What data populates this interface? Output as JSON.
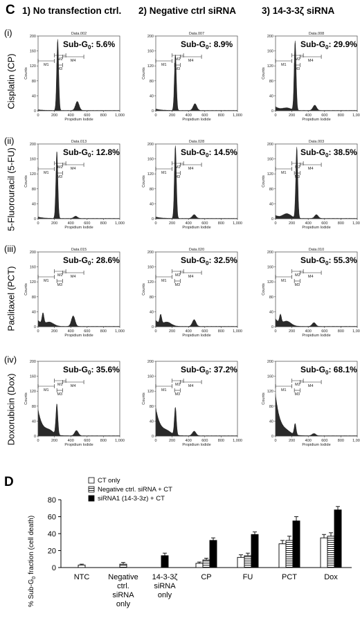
{
  "panel_c": {
    "letter": "C",
    "columns": [
      "1) No transfection ctrl.",
      "2) Negative ctrl siRNA",
      "3) 14-3-3ζ siRNA"
    ],
    "rows": [
      {
        "roman": "(i)",
        "label": "Cisplatin (CP)"
      },
      {
        "roman": "(ii)",
        "label": "5-Fluorouracil (5-FU)"
      },
      {
        "roman": "(iii)",
        "label": "Paclitaxel (PCT)"
      },
      {
        "roman": "(iv)",
        "label": "Doxorubicin (Dox)"
      }
    ],
    "sub_g0_label": "Sub-G",
    "sub_g0_subscript": "0",
    "x_axis_label": "Propidium Iodide",
    "y_axis_label": "Counts",
    "gate_labels": [
      "M1",
      "M2",
      "M3",
      "M4"
    ]
  },
  "chart_data": [
    {
      "type": "histogram-grid",
      "x_ticks": [
        "0",
        "200",
        "400",
        "600",
        "800",
        "1,000"
      ],
      "xlim": [
        0,
        1000
      ],
      "xlabel": "Propidium Iodide",
      "ylabel": "Counts",
      "histograms": [
        {
          "row": 0,
          "col": 0,
          "data_title": "Data.002",
          "sub_g0_value": "5.6%",
          "ylim": [
            0,
            200
          ],
          "y_ticks": [
            "0",
            "40",
            "80",
            "120",
            "160",
            "200"
          ],
          "g1_x": 240,
          "g1_peak": 190,
          "g2_x": 480,
          "g2_peak": 24,
          "debris": 2,
          "sub_hump": 0
        },
        {
          "row": 0,
          "col": 1,
          "data_title": "Data.007",
          "sub_g0_value": "8.9%",
          "ylim": [
            0,
            200
          ],
          "y_ticks": [
            "0",
            "40",
            "80",
            "120",
            "160",
            "200"
          ],
          "g1_x": 240,
          "g1_peak": 150,
          "g2_x": 480,
          "g2_peak": 18,
          "debris": 4,
          "sub_hump": 0
        },
        {
          "row": 0,
          "col": 2,
          "data_title": "Data.008",
          "sub_g0_value": "29.9%",
          "ylim": [
            0,
            200
          ],
          "y_ticks": [
            "0",
            "40",
            "80",
            "120",
            "160",
            "200"
          ],
          "g1_x": 240,
          "g1_peak": 185,
          "g2_x": 480,
          "g2_peak": 14,
          "debris": 10,
          "sub_hump": 6
        },
        {
          "row": 1,
          "col": 0,
          "data_title": "Data.013",
          "sub_g0_value": "12.8%",
          "ylim": [
            0,
            200
          ],
          "y_ticks": [
            "0",
            "40",
            "80",
            "120",
            "160",
            "200"
          ],
          "g1_x": 230,
          "g1_peak": 180,
          "g2_x": 460,
          "g2_peak": 6,
          "debris": 4,
          "sub_hump": 0
        },
        {
          "row": 1,
          "col": 1,
          "data_title": "Data.028",
          "sub_g0_value": "14.5%",
          "ylim": [
            0,
            200
          ],
          "y_ticks": [
            "0",
            "40",
            "80",
            "120",
            "160",
            "200"
          ],
          "g1_x": 240,
          "g1_peak": 195,
          "g2_x": 470,
          "g2_peak": 10,
          "debris": 4,
          "sub_hump": 0
        },
        {
          "row": 1,
          "col": 2,
          "data_title": "Data.003",
          "sub_g0_value": "38.5%",
          "ylim": [
            0,
            200
          ],
          "y_ticks": [
            "0",
            "40",
            "80",
            "120",
            "160",
            "200"
          ],
          "g1_x": 260,
          "g1_peak": 190,
          "g2_x": 500,
          "g2_peak": 10,
          "debris": 8,
          "sub_hump": 12
        },
        {
          "row": 2,
          "col": 0,
          "data_title": "Data.015",
          "sub_g0_value": "28.6%",
          "ylim": [
            0,
            200
          ],
          "y_ticks": [
            "0",
            "40",
            "80",
            "120",
            "160",
            "200"
          ],
          "g1_x": 60,
          "g1_peak": 28,
          "g2_x": 430,
          "g2_peak": 28,
          "debris": 16,
          "sub_hump": 10
        },
        {
          "row": 2,
          "col": 1,
          "data_title": "Data.020",
          "sub_g0_value": "32.5%",
          "ylim": [
            0,
            200
          ],
          "y_ticks": [
            "0",
            "40",
            "80",
            "120",
            "160",
            "200"
          ],
          "g1_x": 60,
          "g1_peak": 24,
          "g2_x": 470,
          "g2_peak": 18,
          "debris": 16,
          "sub_hump": 10
        },
        {
          "row": 2,
          "col": 2,
          "data_title": "Data.010",
          "sub_g0_value": "55.3%",
          "ylim": [
            0,
            200
          ],
          "y_ticks": [
            "0",
            "40",
            "80",
            "120",
            "160",
            "200"
          ],
          "g1_x": 60,
          "g1_peak": 22,
          "g2_x": 470,
          "g2_peak": 10,
          "debris": 20,
          "sub_hump": 12
        },
        {
          "row": 3,
          "col": 0,
          "data_title": "",
          "sub_g0_value": "35.6%",
          "ylim": [
            0,
            200
          ],
          "y_ticks": [
            "0",
            "40",
            "80",
            "120",
            "160",
            "200"
          ],
          "g1_x": 230,
          "g1_peak": 82,
          "g2_x": 470,
          "g2_peak": 14,
          "debris": 70,
          "sub_hump": 10
        },
        {
          "row": 3,
          "col": 1,
          "data_title": "",
          "sub_g0_value": "37.2%",
          "ylim": [
            0,
            200
          ],
          "y_ticks": [
            "0",
            "40",
            "80",
            "120",
            "160",
            "200"
          ],
          "g1_x": 240,
          "g1_peak": 74,
          "g2_x": 470,
          "g2_peak": 12,
          "debris": 75,
          "sub_hump": 8
        },
        {
          "row": 3,
          "col": 2,
          "data_title": "",
          "sub_g0_value": "68.1%",
          "ylim": [
            0,
            200
          ],
          "y_ticks": [
            "0",
            "40",
            "80",
            "120",
            "160",
            "200"
          ],
          "g1_x": 240,
          "g1_peak": 30,
          "g2_x": 470,
          "g2_peak": 6,
          "debris": 110,
          "sub_hump": 6
        }
      ]
    },
    {
      "type": "bar",
      "panel_letter": "D",
      "ylabel": "% Sub-G",
      "ylabel_subscript": "0",
      "ylabel_suffix": " fraction (cell death)",
      "ylim": [
        0,
        80
      ],
      "y_ticks": [
        0,
        20,
        40,
        60,
        80
      ],
      "categories": [
        "NTC",
        "Negative\nctrl.\nsiRNA\nonly",
        "14-3-3ζ\nsiRNA\nonly",
        "CP",
        "FU",
        "PCT",
        "Dox"
      ],
      "series": [
        {
          "name": "CT only",
          "style": "white",
          "values": [
            3,
            null,
            null,
            5,
            12,
            28,
            35
          ],
          "errors": [
            1,
            null,
            null,
            1.5,
            3,
            4,
            4
          ]
        },
        {
          "name": "Negative ctrl. siRNA + CT",
          "style": "hatched",
          "values": [
            null,
            4,
            null,
            9,
            14,
            32,
            37
          ],
          "errors": [
            null,
            2,
            null,
            2,
            3,
            5,
            4
          ]
        },
        {
          "name": "siRNA1 (14-3-3z) + CT",
          "style": "black",
          "values": [
            null,
            null,
            14,
            32,
            39,
            55,
            68
          ],
          "errors": [
            null,
            null,
            3,
            3,
            3,
            5,
            4
          ]
        }
      ]
    }
  ]
}
